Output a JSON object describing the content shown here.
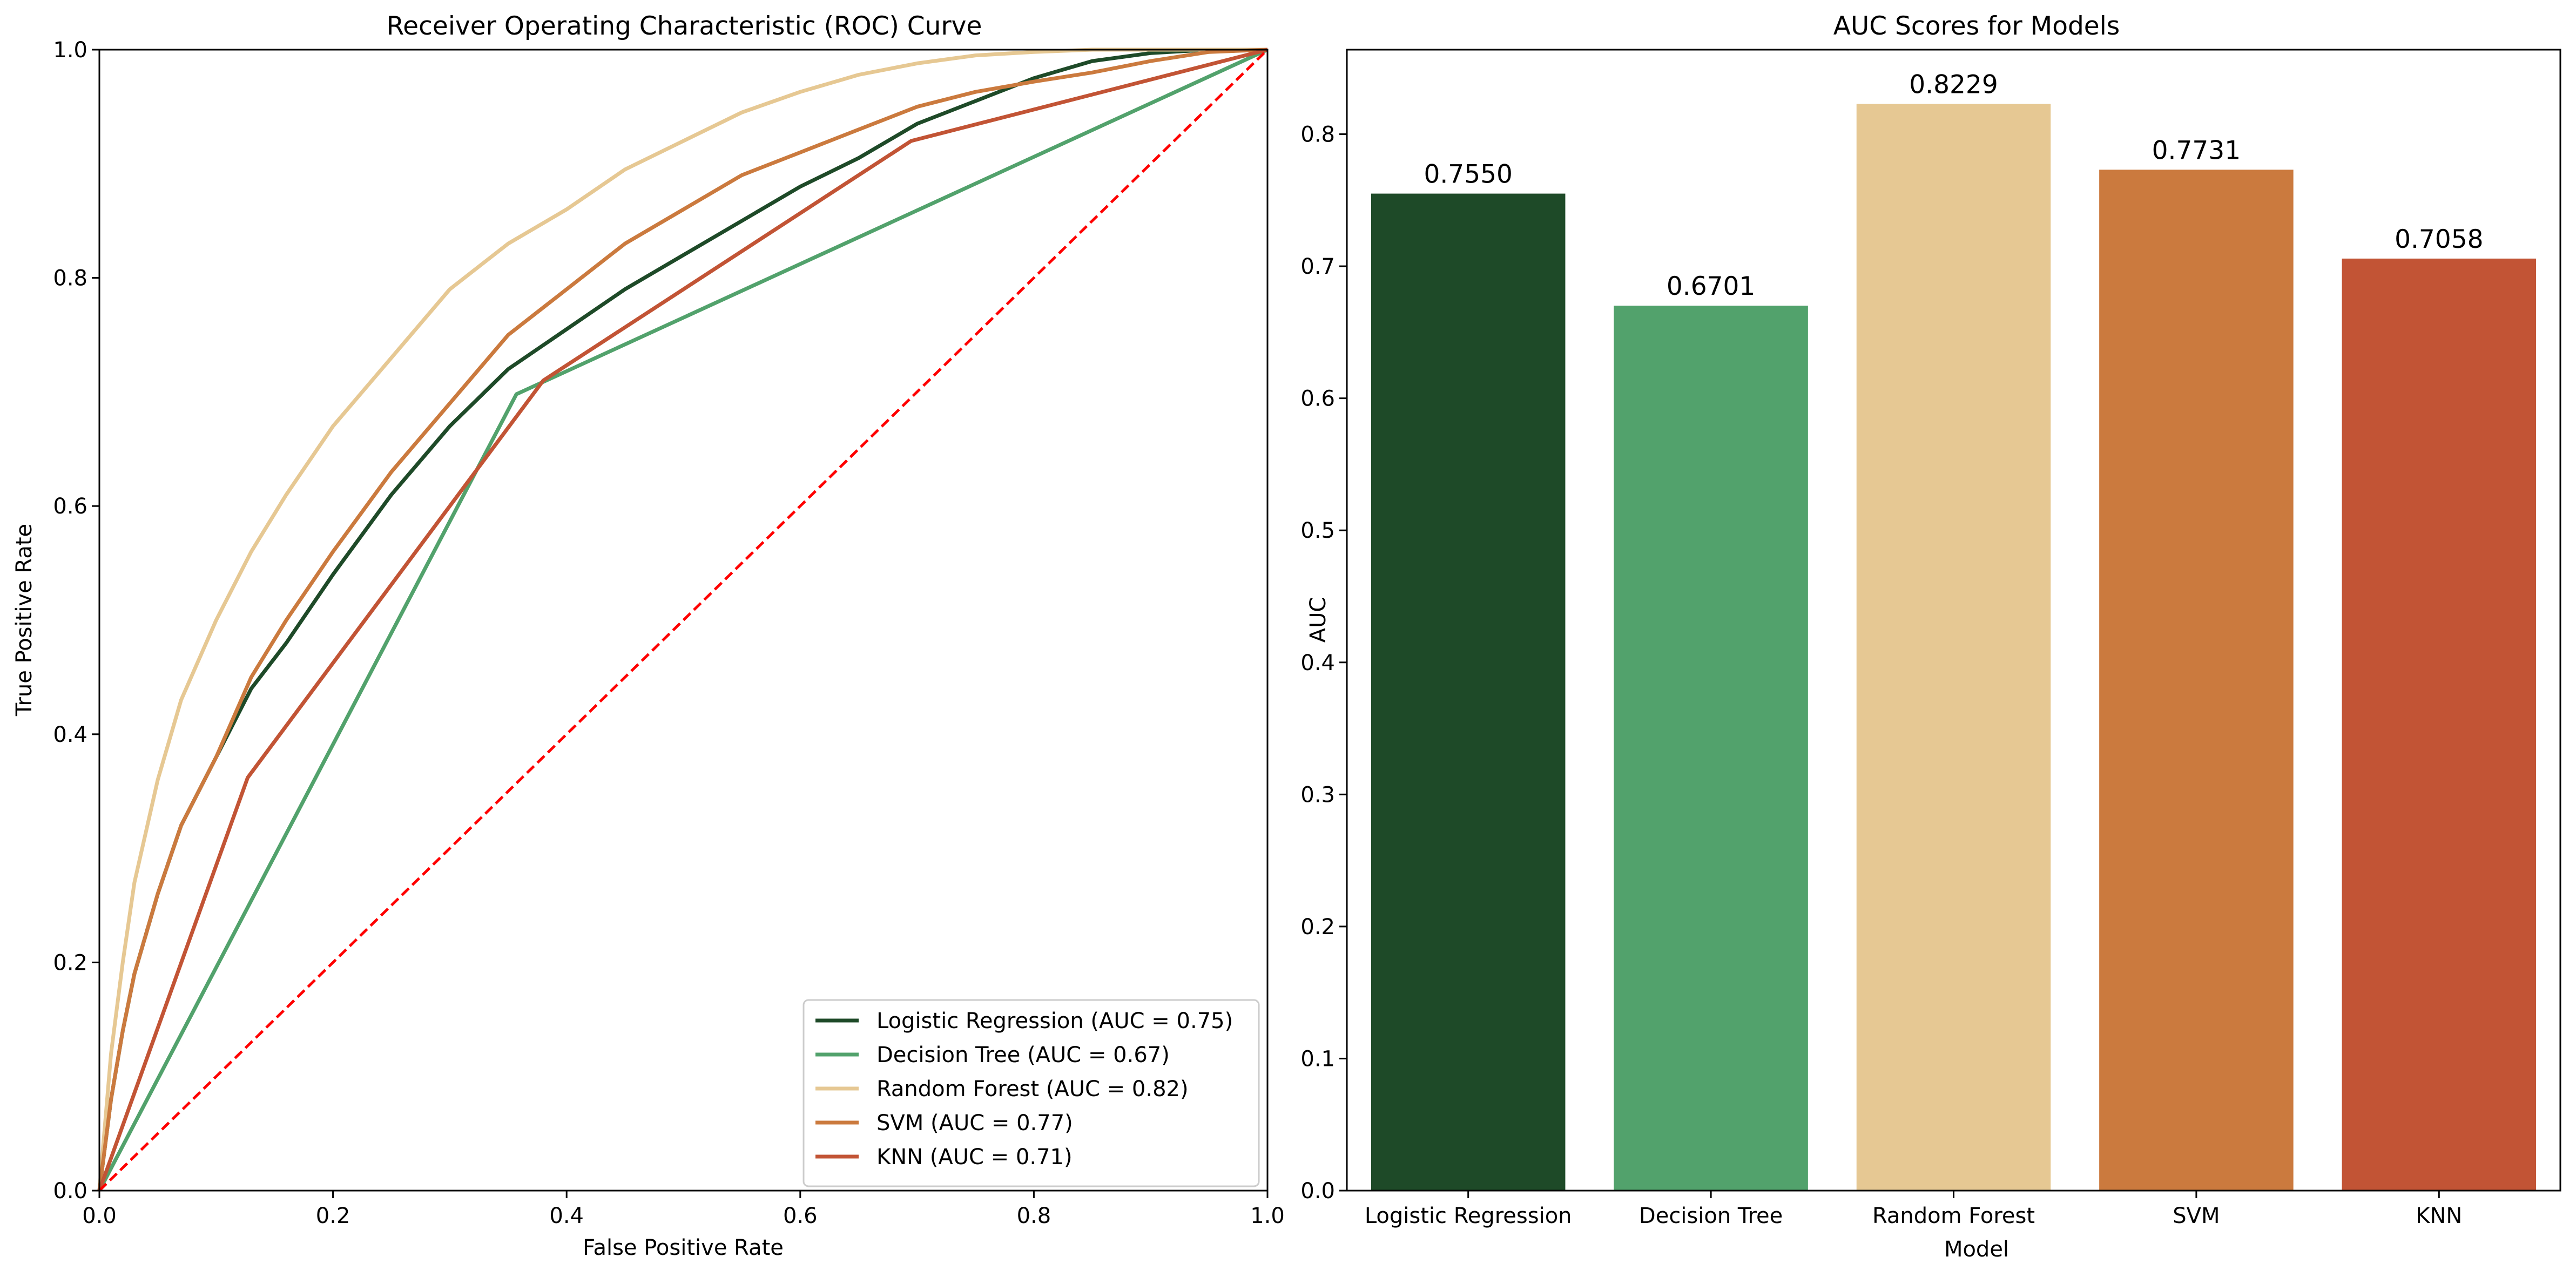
{
  "chart_data": [
    {
      "type": "line",
      "title": "Receiver Operating Characteristic (ROC) Curve",
      "xlabel": "False Positive Rate",
      "ylabel": "True Positive Rate",
      "xlim": [
        0.0,
        1.0
      ],
      "ylim": [
        0.0,
        1.0
      ],
      "xticks": [
        "0.0",
        "0.2",
        "0.4",
        "0.6",
        "0.8",
        "1.0"
      ],
      "yticks": [
        "0.0",
        "0.2",
        "0.4",
        "0.6",
        "0.8",
        "1.0"
      ],
      "grid": false,
      "legend_position": "bottom-right",
      "series": [
        {
          "name": "Logistic Regression (AUC = 0.75)",
          "color": "#1e4a28",
          "x": [
            0,
            0.01,
            0.02,
            0.03,
            0.05,
            0.07,
            0.1,
            0.13,
            0.16,
            0.2,
            0.25,
            0.3,
            0.35,
            0.4,
            0.45,
            0.5,
            0.55,
            0.6,
            0.65,
            0.7,
            0.75,
            0.8,
            0.85,
            0.9,
            0.95,
            1.0
          ],
          "y": [
            0,
            0.08,
            0.14,
            0.19,
            0.26,
            0.32,
            0.38,
            0.44,
            0.48,
            0.54,
            0.61,
            0.67,
            0.72,
            0.755,
            0.79,
            0.82,
            0.85,
            0.88,
            0.905,
            0.935,
            0.955,
            0.975,
            0.99,
            0.997,
            1.0,
            1.0
          ]
        },
        {
          "name": "Decision Tree (AUC = 0.67)",
          "color": "#52a26c",
          "x": [
            0,
            0.357,
            1.0
          ],
          "y": [
            0,
            0.698,
            1.0
          ]
        },
        {
          "name": "Random Forest (AUC = 0.82)",
          "color": "#e6c893",
          "x": [
            0,
            0.01,
            0.02,
            0.03,
            0.05,
            0.07,
            0.1,
            0.13,
            0.16,
            0.2,
            0.25,
            0.3,
            0.35,
            0.4,
            0.45,
            0.5,
            0.55,
            0.6,
            0.65,
            0.7,
            0.75,
            0.8,
            0.85,
            0.9,
            0.95,
            1.0
          ],
          "y": [
            0,
            0.12,
            0.2,
            0.27,
            0.36,
            0.43,
            0.5,
            0.56,
            0.61,
            0.67,
            0.73,
            0.79,
            0.83,
            0.86,
            0.895,
            0.92,
            0.945,
            0.963,
            0.978,
            0.988,
            0.995,
            0.998,
            1.0,
            1.0,
            1.0,
            1.0
          ]
        },
        {
          "name": "SVM (AUC = 0.77)",
          "color": "#cb7a3e",
          "x": [
            0,
            0.01,
            0.02,
            0.03,
            0.05,
            0.07,
            0.1,
            0.13,
            0.16,
            0.2,
            0.25,
            0.3,
            0.35,
            0.4,
            0.45,
            0.5,
            0.55,
            0.6,
            0.65,
            0.7,
            0.75,
            0.8,
            0.85,
            0.9,
            0.95,
            1.0
          ],
          "y": [
            0,
            0.08,
            0.14,
            0.19,
            0.26,
            0.32,
            0.38,
            0.45,
            0.5,
            0.56,
            0.63,
            0.69,
            0.75,
            0.79,
            0.83,
            0.86,
            0.89,
            0.91,
            0.93,
            0.95,
            0.963,
            0.972,
            0.98,
            0.99,
            0.998,
            1.0
          ]
        },
        {
          "name": "KNN (AUC = 0.71)",
          "color": "#c25435",
          "x": [
            0,
            0.127,
            0.38,
            0.695,
            1.0
          ],
          "y": [
            0,
            0.362,
            0.71,
            0.92,
            1.0
          ]
        }
      ],
      "reference_line": {
        "x": [
          0,
          1
        ],
        "y": [
          0,
          1
        ],
        "color": "#ff0000",
        "style": "dashed"
      }
    },
    {
      "type": "bar",
      "title": "AUC Scores for Models",
      "xlabel": "Model",
      "ylabel": "AUC",
      "categories": [
        "Logistic Regression",
        "Decision Tree",
        "Random Forest",
        "SVM",
        "KNN"
      ],
      "values": [
        0.755,
        0.6701,
        0.8229,
        0.7731,
        0.7058
      ],
      "value_labels": [
        "0.7550",
        "0.6701",
        "0.8229",
        "0.7731",
        "0.7058"
      ],
      "colors": [
        "#1e4a28",
        "#52a26c",
        "#e6c893",
        "#cb7a3e",
        "#c25435"
      ],
      "ylim": [
        0.0,
        0.864
      ],
      "yticks": [
        "0.0",
        "0.1",
        "0.2",
        "0.3",
        "0.4",
        "0.5",
        "0.6",
        "0.7",
        "0.8"
      ],
      "grid": false
    }
  ]
}
